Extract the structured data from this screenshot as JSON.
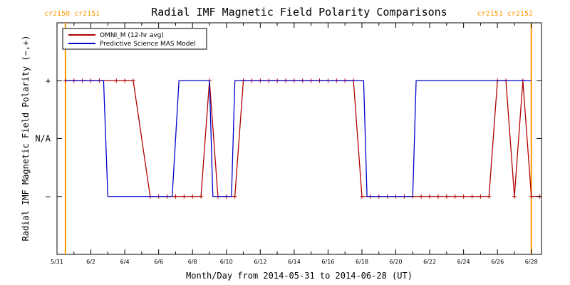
{
  "chart_data": {
    "type": "line",
    "title": "Radial IMF Magnetic Field Polarity Comparisons",
    "xlabel": "Month/Day from 2014-05-31 to 2014-06-28 (UT)",
    "ylabel": "Radial IMF Magnetic Field Polarity (−,+)",
    "x_ticks": [
      "5/31",
      "6/2",
      "6/4",
      "6/6",
      "6/8",
      "6/10",
      "6/12",
      "6/14",
      "6/16",
      "6/18",
      "6/20",
      "6/22",
      "6/24",
      "6/26",
      "6/28"
    ],
    "y_ticks": [
      "−",
      "N/A",
      "+"
    ],
    "xlim": [
      0,
      28.6
    ],
    "ylim": [
      -2,
      2
    ],
    "carrington": [
      {
        "day": 0.5,
        "label": "cr2150 cr2151",
        "align": "left"
      },
      {
        "day": 28.0,
        "label": "cr2151 cr2152",
        "align": "right"
      }
    ],
    "legend_position": "top-left",
    "series": [
      {
        "name": "OMNI_M (12-hr avg)",
        "color": "#b00000",
        "markers": true,
        "x": [
          0.5,
          1.0,
          1.5,
          2.0,
          2.5,
          3.5,
          4.0,
          4.5,
          5.5,
          6.0,
          6.5,
          7.0,
          7.5,
          8.0,
          8.5,
          9.0,
          9.5,
          10.0,
          10.5,
          11.0,
          11.5,
          12.0,
          12.5,
          13.0,
          13.5,
          14.0,
          14.5,
          15.0,
          15.5,
          16.0,
          16.5,
          17.0,
          17.5,
          18.0,
          18.5,
          19.0,
          19.5,
          20.0,
          20.5,
          21.0,
          21.5,
          22.0,
          22.5,
          23.0,
          23.5,
          24.0,
          24.5,
          25.0,
          25.5,
          26.0,
          26.5,
          27.0,
          27.5,
          28.0,
          28.5
        ],
        "y": [
          1,
          1,
          1,
          1,
          1,
          1,
          1,
          1,
          -1,
          -1,
          -1,
          -1,
          -1,
          -1,
          -1,
          1,
          -1,
          -1,
          -1,
          1,
          1,
          1,
          1,
          1,
          1,
          1,
          1,
          1,
          1,
          1,
          1,
          1,
          1,
          -1,
          -1,
          -1,
          -1,
          -1,
          -1,
          -1,
          -1,
          -1,
          -1,
          -1,
          -1,
          -1,
          -1,
          -1,
          -1,
          1,
          1,
          -1,
          1,
          -1,
          -1
        ]
      },
      {
        "name": "Predictive Science MAS Model",
        "color": "#0000cc",
        "markers": false,
        "x": [
          0.5,
          2.75,
          3.0,
          6.8,
          7.2,
          9.0,
          9.2,
          10.3,
          10.5,
          18.1,
          18.3,
          21.0,
          21.2,
          28.0
        ],
        "y": [
          1,
          1,
          -1,
          -1,
          1,
          1,
          -1,
          -1,
          1,
          1,
          -1,
          -1,
          1,
          1
        ]
      }
    ]
  }
}
